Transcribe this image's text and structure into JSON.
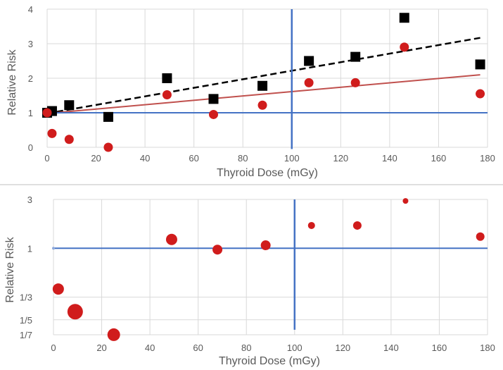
{
  "chart_data": [
    {
      "type": "scatter",
      "title": "",
      "xlabel": "Thyroid Dose (mGy)",
      "ylabel": "Relative Risk",
      "xlim": [
        0,
        180
      ],
      "ylim": [
        0,
        4
      ],
      "xticks": [
        "0",
        "20",
        "40",
        "60",
        "80",
        "100",
        "120",
        "140",
        "160",
        "180"
      ],
      "yticks": [
        "0",
        "1",
        "2",
        "3",
        "4"
      ],
      "grid": true,
      "colors": {
        "black": "#000000",
        "red": "#d01c1c",
        "trend_red": "#c0504d",
        "blue": "#4472c4"
      },
      "series": [
        {
          "name": "Black squares",
          "marker": "square",
          "color": "#000000",
          "x": [
            0,
            2,
            9,
            25,
            49,
            68,
            88,
            107,
            126,
            146,
            177
          ],
          "y": [
            1.0,
            1.05,
            1.22,
            0.88,
            2.0,
            1.4,
            1.78,
            2.5,
            2.62,
            3.75,
            2.4
          ]
        },
        {
          "name": "Red circles",
          "marker": "circle",
          "color": "#d01c1c",
          "x": [
            0,
            2,
            9,
            25,
            49,
            68,
            88,
            107,
            126,
            146,
            177
          ],
          "y": [
            1.0,
            0.4,
            0.23,
            0.0,
            1.52,
            0.95,
            1.22,
            1.87,
            1.87,
            2.9,
            1.55
          ]
        }
      ],
      "trendlines": [
        {
          "name": "Black trend",
          "style": "dashed",
          "color": "#000000",
          "x": [
            0,
            177
          ],
          "y": [
            0.98,
            3.17
          ]
        },
        {
          "name": "Red trend",
          "style": "solid",
          "color": "#c0504d",
          "x": [
            0,
            177
          ],
          "y": [
            0.98,
            2.1
          ]
        }
      ],
      "reference_lines": [
        {
          "orientation": "horizontal",
          "value": 1.0,
          "color": "#4472c4"
        },
        {
          "orientation": "vertical",
          "value": 100,
          "y_range": [
            -0.05,
            4.0
          ],
          "color": "#4472c4"
        }
      ]
    },
    {
      "type": "scatter",
      "title": "",
      "xlabel": "Thyroid Dose (mGy)",
      "ylabel": "Relative Risk",
      "xlim": [
        0,
        180
      ],
      "yscale": "log",
      "ylim": [
        0.142857,
        3
      ],
      "xticks": [
        "0",
        "20",
        "40",
        "60",
        "80",
        "100",
        "120",
        "140",
        "160",
        "180"
      ],
      "yticks": [
        {
          "label": "3",
          "value": 3
        },
        {
          "label": "1",
          "value": 1
        },
        {
          "label": "1/3",
          "value": 0.333333
        },
        {
          "label": "1/5",
          "value": 0.2
        },
        {
          "label": "1/7",
          "value": 0.142857
        }
      ],
      "grid": true,
      "series": [
        {
          "name": "Red circles (sized)",
          "marker": "circle",
          "color": "#d01c1c",
          "points": [
            {
              "x": 0,
              "y": 1.0,
              "size": 2
            },
            {
              "x": 2,
              "y": 0.4,
              "size": 8
            },
            {
              "x": 9,
              "y": 0.24,
              "size": 11
            },
            {
              "x": 25,
              "y": 0.143,
              "size": 9
            },
            {
              "x": 49,
              "y": 1.22,
              "size": 8
            },
            {
              "x": 68,
              "y": 0.97,
              "size": 7
            },
            {
              "x": 88,
              "y": 1.07,
              "size": 7
            },
            {
              "x": 107,
              "y": 1.67,
              "size": 5
            },
            {
              "x": 126,
              "y": 1.67,
              "size": 6
            },
            {
              "x": 146,
              "y": 2.9,
              "size": 4
            },
            {
              "x": 177,
              "y": 1.3,
              "size": 6
            }
          ]
        }
      ],
      "reference_lines": [
        {
          "orientation": "horizontal",
          "value": 1.0,
          "color": "#4472c4"
        },
        {
          "orientation": "vertical",
          "value": 100,
          "y_range": [
            0.16,
            3.0
          ],
          "color": "#4472c4"
        }
      ]
    }
  ]
}
